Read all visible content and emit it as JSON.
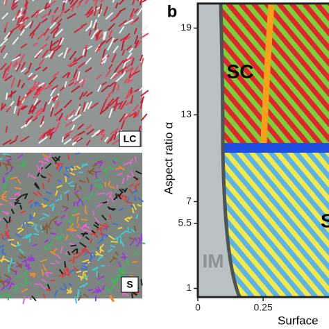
{
  "chart_data": {
    "type": "phase-diagram",
    "panel_label": "b",
    "image_labels": [
      "LC",
      "S"
    ],
    "ylabel": "Aspect ratio α",
    "xlabel": "Surface",
    "regions": [
      "IM",
      "SC",
      "S"
    ],
    "xlim": [
      0,
      0.51
    ],
    "xticks": [
      0,
      0.25
    ],
    "ylim": [
      0.4,
      20.7
    ],
    "yticks": [
      1,
      5.5,
      7,
      13,
      19
    ]
  }
}
